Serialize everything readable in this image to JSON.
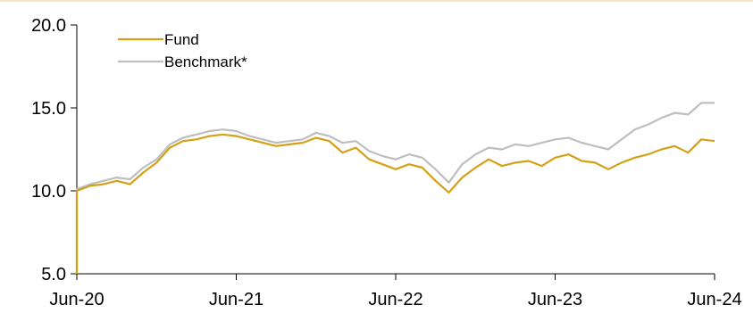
{
  "chart_data": {
    "type": "line",
    "title": "",
    "xlabel": "",
    "ylabel": "",
    "ylim": [
      5.0,
      20.0
    ],
    "yticks": [
      "5.0",
      "10.0",
      "15.0",
      "20.0"
    ],
    "xticks": [
      "Jun-20",
      "Jun-21",
      "Jun-22",
      "Jun-23",
      "Jun-24"
    ],
    "xlim": [
      "Jun-20",
      "Jun-24"
    ],
    "grid": false,
    "legend_position": "top-left",
    "series": [
      {
        "name": "Fund",
        "color": "#D4A017",
        "points": [
          [
            "Jun-20",
            5.0
          ],
          [
            "Jun-20",
            10.0
          ],
          [
            "Jul-20",
            10.3
          ],
          [
            "Aug-20",
            10.4
          ],
          [
            "Sep-20",
            10.6
          ],
          [
            "Oct-20",
            10.4
          ],
          [
            "Nov-20",
            11.1
          ],
          [
            "Dec-20",
            11.7
          ],
          [
            "Jan-21",
            12.6
          ],
          [
            "Feb-21",
            13.0
          ],
          [
            "Mar-21",
            13.1
          ],
          [
            "Apr-21",
            13.3
          ],
          [
            "May-21",
            13.4
          ],
          [
            "Jun-21",
            13.3
          ],
          [
            "Jul-21",
            13.1
          ],
          [
            "Aug-21",
            12.9
          ],
          [
            "Sep-21",
            12.7
          ],
          [
            "Oct-21",
            12.8
          ],
          [
            "Nov-21",
            12.9
          ],
          [
            "Dec-21",
            13.2
          ],
          [
            "Jan-22",
            13.0
          ],
          [
            "Feb-22",
            12.3
          ],
          [
            "Mar-22",
            12.6
          ],
          [
            "Apr-22",
            11.9
          ],
          [
            "May-22",
            11.6
          ],
          [
            "Jun-22",
            11.3
          ],
          [
            "Jul-22",
            11.6
          ],
          [
            "Aug-22",
            11.4
          ],
          [
            "Sep-22",
            10.6
          ],
          [
            "Oct-22",
            9.9
          ],
          [
            "Nov-22",
            10.8
          ],
          [
            "Dec-22",
            11.4
          ],
          [
            "Jan-23",
            11.9
          ],
          [
            "Feb-23",
            11.5
          ],
          [
            "Mar-23",
            11.7
          ],
          [
            "Apr-23",
            11.8
          ],
          [
            "May-23",
            11.5
          ],
          [
            "Jun-23",
            12.0
          ],
          [
            "Jul-23",
            12.2
          ],
          [
            "Aug-23",
            11.8
          ],
          [
            "Sep-23",
            11.7
          ],
          [
            "Oct-23",
            11.3
          ],
          [
            "Nov-23",
            11.7
          ],
          [
            "Dec-23",
            12.0
          ],
          [
            "Jan-24",
            12.2
          ],
          [
            "Feb-24",
            12.5
          ],
          [
            "Mar-24",
            12.7
          ],
          [
            "Apr-24",
            12.3
          ],
          [
            "May-24",
            13.1
          ],
          [
            "Jun-24",
            13.0
          ]
        ]
      },
      {
        "name": "Benchmark*",
        "color": "#BEBEBE",
        "points": [
          [
            "Jun-20",
            5.0
          ],
          [
            "Jun-20",
            10.1
          ],
          [
            "Jul-20",
            10.4
          ],
          [
            "Aug-20",
            10.6
          ],
          [
            "Sep-20",
            10.8
          ],
          [
            "Oct-20",
            10.7
          ],
          [
            "Nov-20",
            11.4
          ],
          [
            "Dec-20",
            11.9
          ],
          [
            "Jan-21",
            12.8
          ],
          [
            "Feb-21",
            13.2
          ],
          [
            "Mar-21",
            13.4
          ],
          [
            "Apr-21",
            13.6
          ],
          [
            "May-21",
            13.7
          ],
          [
            "Jun-21",
            13.6
          ],
          [
            "Jul-21",
            13.3
          ],
          [
            "Aug-21",
            13.1
          ],
          [
            "Sep-21",
            12.9
          ],
          [
            "Oct-21",
            13.0
          ],
          [
            "Nov-21",
            13.1
          ],
          [
            "Dec-21",
            13.5
          ],
          [
            "Jan-22",
            13.3
          ],
          [
            "Feb-22",
            12.9
          ],
          [
            "Mar-22",
            13.0
          ],
          [
            "Apr-22",
            12.4
          ],
          [
            "May-22",
            12.1
          ],
          [
            "Jun-22",
            11.9
          ],
          [
            "Jul-22",
            12.2
          ],
          [
            "Aug-22",
            12.0
          ],
          [
            "Sep-22",
            11.3
          ],
          [
            "Oct-22",
            10.5
          ],
          [
            "Nov-22",
            11.6
          ],
          [
            "Dec-22",
            12.2
          ],
          [
            "Jan-23",
            12.6
          ],
          [
            "Feb-23",
            12.5
          ],
          [
            "Mar-23",
            12.8
          ],
          [
            "Apr-23",
            12.7
          ],
          [
            "May-23",
            12.9
          ],
          [
            "Jun-23",
            13.1
          ],
          [
            "Jul-23",
            13.2
          ],
          [
            "Aug-23",
            12.9
          ],
          [
            "Sep-23",
            12.7
          ],
          [
            "Oct-23",
            12.5
          ],
          [
            "Nov-23",
            13.1
          ],
          [
            "Dec-23",
            13.7
          ],
          [
            "Jan-24",
            14.0
          ],
          [
            "Feb-24",
            14.4
          ],
          [
            "Mar-24",
            14.7
          ],
          [
            "Apr-24",
            14.6
          ],
          [
            "May-24",
            15.3
          ],
          [
            "Jun-24",
            15.3
          ]
        ]
      }
    ]
  }
}
